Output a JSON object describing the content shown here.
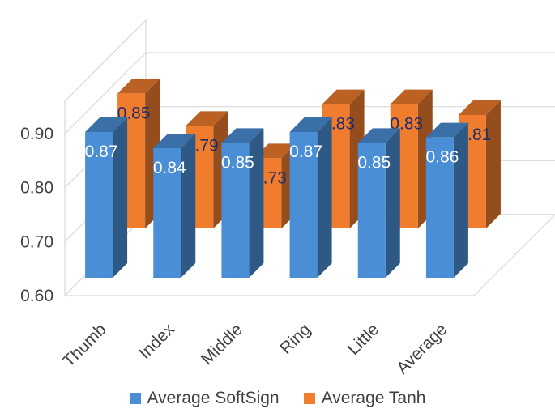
{
  "chart_data": {
    "type": "bar",
    "categories": [
      "Thumb",
      "Index",
      "Middle",
      "Ring",
      "Little",
      "Average"
    ],
    "series": [
      {
        "name": "Average SoftSign",
        "values": [
          0.87,
          0.84,
          0.85,
          0.87,
          0.85,
          0.86
        ],
        "color": "#4A8FD6"
      },
      {
        "name": "Average Tanh",
        "values": [
          0.85,
          0.79,
          0.73,
          0.83,
          0.83,
          0.81
        ],
        "color": "#F07C2E"
      }
    ],
    "y_ticks": [
      "0.60",
      "0.70",
      "0.80",
      "0.90"
    ],
    "ylim": [
      0.6,
      0.9
    ],
    "grid": true,
    "legend_position": "bottom",
    "style": "3d-clustered-column"
  }
}
